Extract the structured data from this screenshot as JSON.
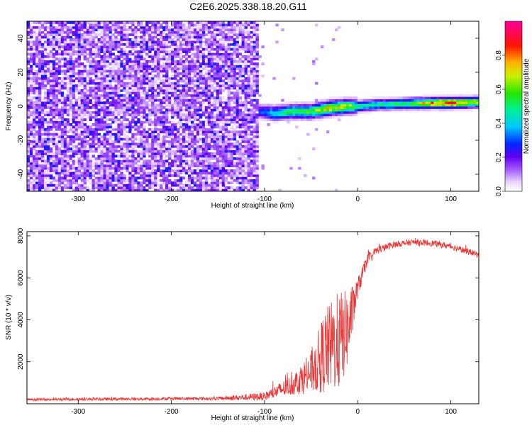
{
  "figure_title": "C2E6.2025.338.18.20.G11",
  "chart_data": [
    {
      "type": "heatmap",
      "xlabel": "Height of straight line (km)",
      "ylabel": "Frequency (Hz)",
      "xlim": [
        -355,
        130
      ],
      "ylim": [
        -50,
        50
      ],
      "xticks": [
        -300,
        -200,
        -100,
        0,
        100
      ],
      "yticks": [
        -40,
        -20,
        0,
        20,
        40
      ],
      "colorbar": {
        "label": "Normalized spectral amplitude",
        "range": [
          0,
          1
        ],
        "ticks": [
          0.0,
          0.2,
          0.4,
          0.6,
          0.8
        ],
        "tick_labels": [
          "0.0",
          "0.2",
          "0.4",
          "0.6",
          "0.8"
        ],
        "colormap": "rainbow (white-violet-blue-cyan-green-yellow-red-magenta)"
      },
      "features": {
        "noise_region_x": [
          -355,
          -105
        ],
        "noise_level": 0.15,
        "tone_ridge": {
          "x": [
            -105,
            -90,
            -70,
            -50,
            -30,
            -10,
            0,
            20,
            50,
            80,
            100,
            130
          ],
          "freq": [
            -3,
            -4,
            -3,
            -3,
            -1,
            0,
            0,
            1,
            1.5,
            2,
            2,
            2.5
          ],
          "amplitude": [
            0.3,
            0.45,
            0.55,
            0.6,
            0.75,
            0.7,
            0.5,
            0.5,
            0.55,
            0.85,
            0.9,
            0.7
          ]
        }
      }
    },
    {
      "type": "line",
      "xlabel": "Height of straight line (km)",
      "ylabel": "SNR (10 * v/v)",
      "xlim": [
        -355,
        130
      ],
      "ylim": [
        0,
        8200
      ],
      "xticks": [
        -300,
        -200,
        -100,
        0,
        100
      ],
      "yticks": [
        2000,
        4000,
        6000,
        8000
      ],
      "series": [
        {
          "color": "#ee3333",
          "envelope": {
            "x": [
              -355,
              -150,
              -100,
              -70,
              -50,
              -35,
              -20,
              -10,
              0,
              10,
              20,
              40,
              60,
              80,
              100,
              130
            ],
            "y": [
              200,
              250,
              350,
              900,
              1500,
              2500,
              3000,
              3600,
              5500,
              6800,
              7300,
              7600,
              7700,
              7650,
              7500,
              7100
            ],
            "noise_amplitude": [
              60,
              80,
              200,
              500,
              1000,
              2000,
              2400,
              1800,
              500,
              300,
              200,
              150,
              150,
              150,
              150,
              150
            ]
          }
        }
      ]
    }
  ]
}
